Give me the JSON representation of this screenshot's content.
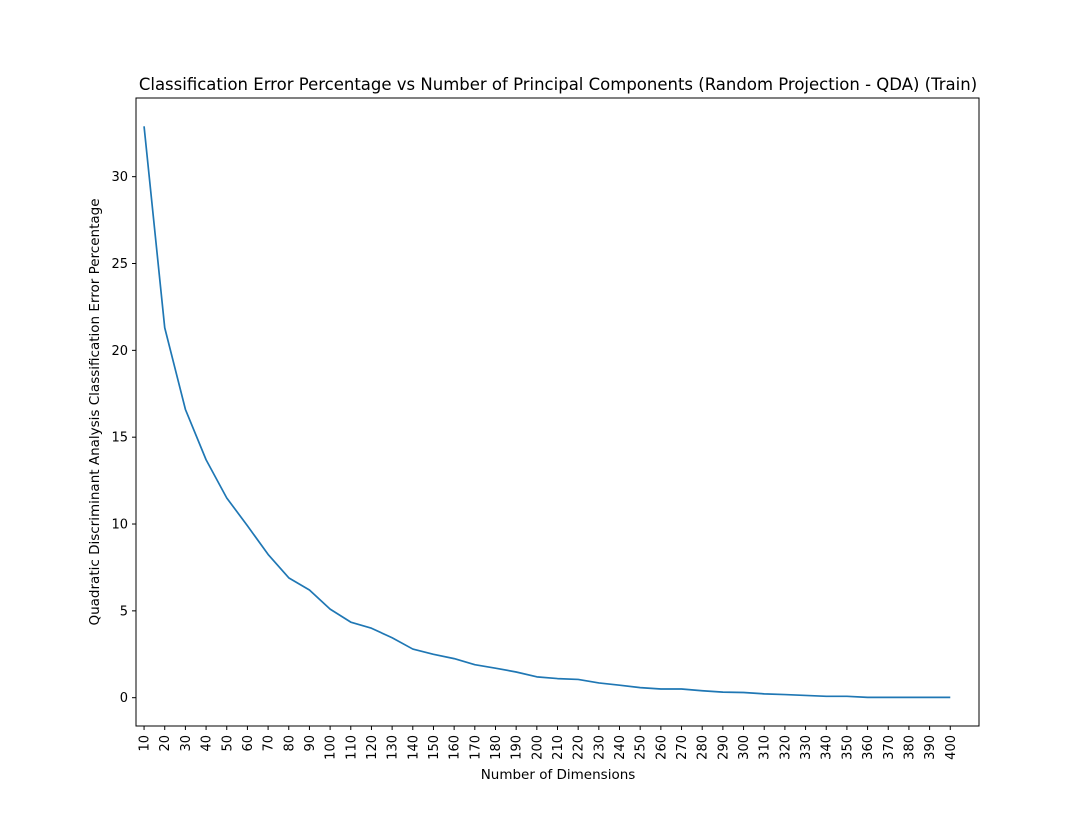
{
  "chart_data": {
    "type": "line",
    "title": "Classification Error Percentage vs Number of Principal Components (Random Projection - QDA) (Train)",
    "xlabel": "Number of Dimensions",
    "ylabel": "Quadratic Discriminant Analysis Classification Error Percentage",
    "x": [
      10,
      20,
      30,
      40,
      50,
      60,
      70,
      80,
      90,
      100,
      110,
      120,
      130,
      140,
      150,
      160,
      170,
      180,
      190,
      200,
      210,
      220,
      230,
      240,
      250,
      260,
      270,
      280,
      290,
      300,
      310,
      320,
      330,
      340,
      350,
      360,
      370,
      380,
      390,
      400
    ],
    "series": [
      {
        "color": "#1f77b4",
        "values": [
          32.9,
          21.3,
          16.6,
          13.7,
          11.5,
          9.9,
          8.25,
          6.9,
          6.2,
          5.1,
          4.35,
          4.0,
          3.45,
          2.8,
          2.5,
          2.25,
          1.9,
          1.7,
          1.48,
          1.2,
          1.1,
          1.05,
          0.85,
          0.72,
          0.58,
          0.5,
          0.5,
          0.4,
          0.32,
          0.3,
          0.22,
          0.18,
          0.13,
          0.08,
          0.08,
          0.02,
          0.02,
          0.02,
          0.02,
          0.02
        ]
      }
    ],
    "xticks": [
      "10",
      "20",
      "30",
      "40",
      "50",
      "60",
      "70",
      "80",
      "90",
      "100",
      "110",
      "120",
      "130",
      "140",
      "150",
      "160",
      "170",
      "180",
      "190",
      "200",
      "210",
      "220",
      "230",
      "240",
      "250",
      "260",
      "270",
      "280",
      "290",
      "300",
      "310",
      "320",
      "330",
      "340",
      "350",
      "360",
      "370",
      "380",
      "390",
      "400"
    ],
    "yticks": [
      0,
      5,
      10,
      15,
      20,
      25,
      30
    ],
    "ytick_labels": [
      "0",
      "5",
      "10",
      "15",
      "20",
      "25",
      "30"
    ],
    "xlim": [
      6.1,
      413.9
    ],
    "ylim": [
      -1.63,
      34.53
    ],
    "grid": false,
    "legend": "none"
  }
}
